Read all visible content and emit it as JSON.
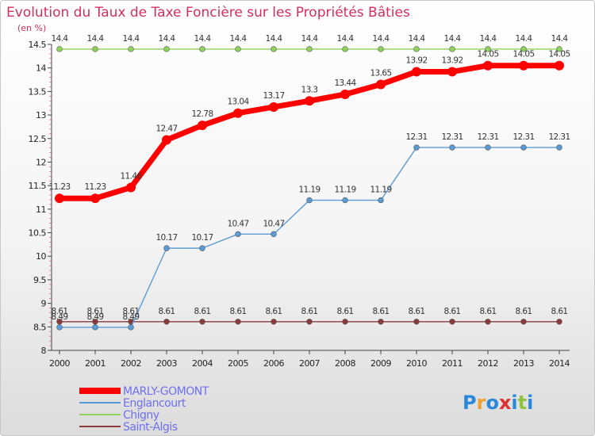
{
  "chart_data": {
    "type": "line",
    "title": "Evolution du Taux de Taxe Foncière sur les Propriétés Bâties",
    "ylabel": "(en %)",
    "xlabel": "",
    "ylim": [
      8,
      14.5
    ],
    "yticks": [
      "8",
      "8.5",
      "9",
      "9.5",
      "10",
      "10.5",
      "11",
      "11.5",
      "12",
      "12.5",
      "13",
      "13.5",
      "14",
      "14.5"
    ],
    "x": [
      "2000",
      "2001",
      "2002",
      "2003",
      "2004",
      "2005",
      "2006",
      "2007",
      "2008",
      "2009",
      "2010",
      "2011",
      "2012",
      "2013",
      "2014"
    ],
    "series": [
      {
        "name": "MARLY-GOMONT",
        "color": "#ff0000",
        "values": [
          11.23,
          11.23,
          11.46,
          12.47,
          12.78,
          13.04,
          13.17,
          13.3,
          13.44,
          13.65,
          13.92,
          13.92,
          14.05,
          14.05,
          14.05
        ],
        "labels": [
          "11.23",
          "11.23",
          "11.46",
          "12.47",
          "12.78",
          "13.04",
          "13.17",
          "13.3",
          "13.44",
          "13.65",
          "13.92",
          "13.92",
          "14.05",
          "14.05",
          "14.05"
        ]
      },
      {
        "name": "Englancourt",
        "color": "#5b9bd5",
        "values": [
          8.49,
          8.49,
          8.49,
          10.17,
          10.17,
          10.47,
          10.47,
          11.19,
          11.19,
          11.19,
          12.31,
          12.31,
          12.31,
          12.31,
          12.31
        ],
        "labels": [
          "8.49",
          "8.49",
          "8.49",
          "10.17",
          "10.17",
          "10.47",
          "10.47",
          "11.19",
          "11.19",
          "11.19",
          "12.31",
          "12.31",
          "12.31",
          "12.31",
          "12.31"
        ]
      },
      {
        "name": "Chigny",
        "color": "#8fd45a",
        "values": [
          14.4,
          14.4,
          14.4,
          14.4,
          14.4,
          14.4,
          14.4,
          14.4,
          14.4,
          14.4,
          14.4,
          14.4,
          14.4,
          14.4,
          14.4
        ],
        "labels": [
          "14.4",
          "14.4",
          "14.4",
          "14.4",
          "14.4",
          "14.4",
          "14.4",
          "14.4",
          "14.4",
          "14.4",
          "14.4",
          "14.4",
          "14.4",
          "14.4",
          "14.4"
        ]
      },
      {
        "name": "Saint-Algis",
        "color": "#8b3a3a",
        "values": [
          8.61,
          8.61,
          8.61,
          8.61,
          8.61,
          8.61,
          8.61,
          8.61,
          8.61,
          8.61,
          8.61,
          8.61,
          8.61,
          8.61,
          8.61
        ],
        "labels": [
          "8.61",
          "8.61",
          "8.61",
          "8.61",
          "8.61",
          "8.61",
          "8.61",
          "8.61",
          "8.61",
          "8.61",
          "8.61",
          "8.61",
          "8.61",
          "8.61",
          "8.61"
        ]
      }
    ],
    "legend_position": "bottom-left",
    "grid": false
  },
  "brand": {
    "logo_text": "Proxiti"
  }
}
